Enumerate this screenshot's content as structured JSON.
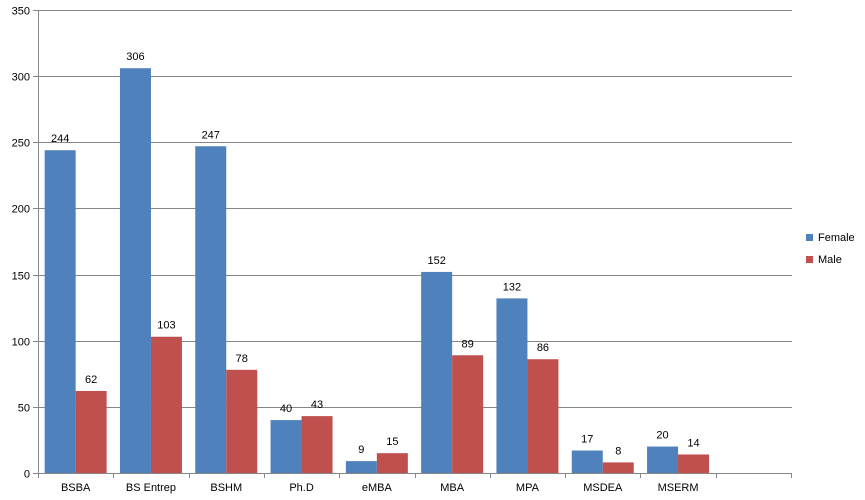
{
  "chart_data": {
    "type": "bar",
    "categories": [
      "BSBA",
      "BS Entrep",
      "BSHM",
      "Ph.D",
      "eMBA",
      "MBA",
      "MPA",
      "MSDEA",
      "MSERM"
    ],
    "series": [
      {
        "name": "Female",
        "color": "#4F81BD",
        "values": [
          244,
          306,
          247,
          40,
          9,
          152,
          132,
          17,
          20
        ]
      },
      {
        "name": "Male",
        "color": "#C0504D",
        "values": [
          62,
          103,
          78,
          43,
          15,
          89,
          86,
          8,
          14
        ]
      }
    ],
    "ylim": [
      0,
      350
    ],
    "yticks": [
      0,
      50,
      100,
      150,
      200,
      250,
      300,
      350
    ],
    "grid": true,
    "legend_position": "right",
    "title": "",
    "xlabel": "",
    "ylabel": ""
  }
}
